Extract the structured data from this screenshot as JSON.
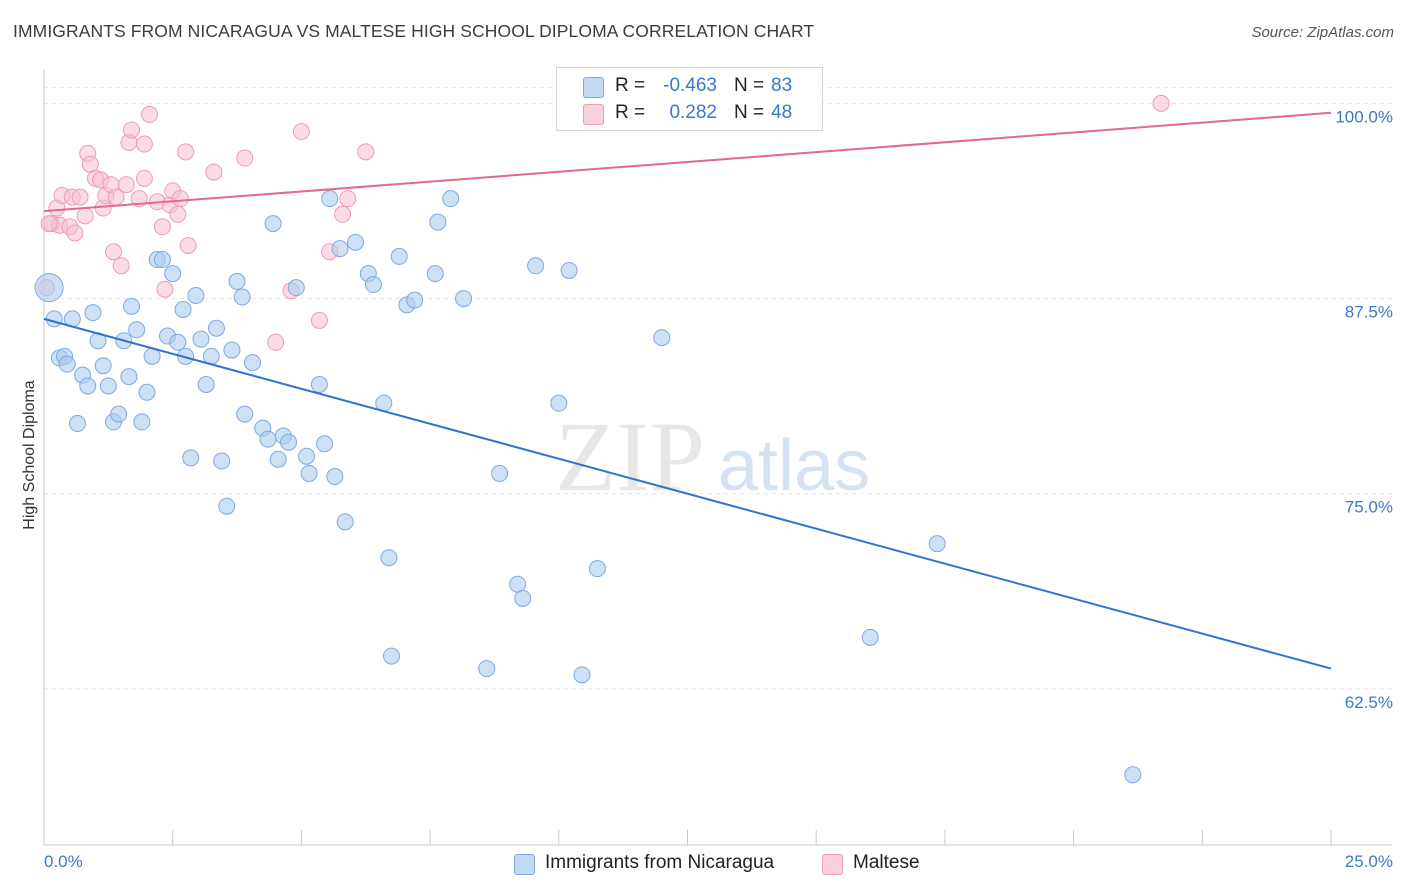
{
  "header": {
    "title": "IMMIGRANTS FROM NICARAGUA VS MALTESE HIGH SCHOOL DIPLOMA CORRELATION CHART",
    "source": "Source: ZipAtlas.com"
  },
  "watermark": {
    "zip": "ZIP",
    "atlas": "atlas"
  },
  "legend_top": {
    "rows": [
      {
        "r_label": "R =",
        "r_value": "-0.463",
        "n_label": "N =",
        "n_value": "83"
      },
      {
        "r_label": "R =",
        "r_value": "0.282",
        "n_label": "N =",
        "n_value": "48"
      }
    ]
  },
  "legend_bottom": {
    "items": [
      {
        "label": "Immigrants from Nicaragua"
      },
      {
        "label": "Maltese"
      }
    ]
  },
  "colors": {
    "blue_fill": "#aecbf0",
    "blue_stroke": "#7fa9df",
    "blue_line": "#2f74d0",
    "pink_fill": "#f7bfd0",
    "pink_stroke": "#ee9bb6",
    "pink_line": "#e2688f",
    "grid": "#e3e3e3",
    "tick_label": "#3a78c9"
  },
  "chart_data": {
    "type": "scatter",
    "title": "IMMIGRANTS FROM NICARAGUA VS MALTESE HIGH SCHOOL DIPLOMA CORRELATION CHART",
    "xlabel": "",
    "ylabel": "High School Diploma",
    "xlim": [
      0,
      25
    ],
    "ylim": [
      52.5,
      101.5
    ],
    "x_tick_labels": {
      "min": "0.0%",
      "max": "25.0%"
    },
    "y_ticks": [
      {
        "value": 100,
        "label": "100.0%"
      },
      {
        "value": 87.5,
        "label": "87.5%"
      },
      {
        "value": 75,
        "label": "75.0%"
      },
      {
        "value": 62.5,
        "label": "62.5%"
      }
    ],
    "grid": "horizontal dashed",
    "legend_placement": "top-center",
    "series": [
      {
        "name": "Immigrants from Nicaragua",
        "color": "#aecbf0",
        "trend": {
          "x": [
            0,
            25
          ],
          "y": [
            86.2,
            63.8
          ]
        },
        "points": [
          [
            0.1,
            88.2
          ],
          [
            0.2,
            86.2
          ],
          [
            0.3,
            83.7
          ],
          [
            0.4,
            83.8
          ],
          [
            0.45,
            83.3
          ],
          [
            0.55,
            86.2
          ],
          [
            0.65,
            79.5
          ],
          [
            0.75,
            82.6
          ],
          [
            0.85,
            81.9
          ],
          [
            0.95,
            86.6
          ],
          [
            1.05,
            84.8
          ],
          [
            1.15,
            83.2
          ],
          [
            1.25,
            81.9
          ],
          [
            1.35,
            79.6
          ],
          [
            1.45,
            80.1
          ],
          [
            1.55,
            84.8
          ],
          [
            1.65,
            82.5
          ],
          [
            1.7,
            87.0
          ],
          [
            1.8,
            85.5
          ],
          [
            1.9,
            79.6
          ],
          [
            2.0,
            81.5
          ],
          [
            2.1,
            83.8
          ],
          [
            2.2,
            90.0
          ],
          [
            2.3,
            90.0
          ],
          [
            2.4,
            85.1
          ],
          [
            2.5,
            89.1
          ],
          [
            2.6,
            84.7
          ],
          [
            2.7,
            86.8
          ],
          [
            2.75,
            83.8
          ],
          [
            2.85,
            77.3
          ],
          [
            2.95,
            87.7
          ],
          [
            3.05,
            84.9
          ],
          [
            3.15,
            82.0
          ],
          [
            3.25,
            83.8
          ],
          [
            3.35,
            85.6
          ],
          [
            3.45,
            77.1
          ],
          [
            3.55,
            74.2
          ],
          [
            3.65,
            84.2
          ],
          [
            3.75,
            88.6
          ],
          [
            3.85,
            87.6
          ],
          [
            3.9,
            80.1
          ],
          [
            4.05,
            83.4
          ],
          [
            4.25,
            79.2
          ],
          [
            4.35,
            78.5
          ],
          [
            4.45,
            92.3
          ],
          [
            4.55,
            77.2
          ],
          [
            4.65,
            78.7
          ],
          [
            4.75,
            78.3
          ],
          [
            4.9,
            88.2
          ],
          [
            5.1,
            77.4
          ],
          [
            5.15,
            76.3
          ],
          [
            5.35,
            82.0
          ],
          [
            5.45,
            78.2
          ],
          [
            5.55,
            93.9
          ],
          [
            5.65,
            76.1
          ],
          [
            5.75,
            90.7
          ],
          [
            5.85,
            73.2
          ],
          [
            6.05,
            91.1
          ],
          [
            6.3,
            89.1
          ],
          [
            6.4,
            88.4
          ],
          [
            6.6,
            80.8
          ],
          [
            6.7,
            70.9
          ],
          [
            6.75,
            64.6
          ],
          [
            6.9,
            90.2
          ],
          [
            7.05,
            87.1
          ],
          [
            7.2,
            87.4
          ],
          [
            7.6,
            89.1
          ],
          [
            7.65,
            92.4
          ],
          [
            7.9,
            93.9
          ],
          [
            8.15,
            87.5
          ],
          [
            8.6,
            63.8
          ],
          [
            8.85,
            76.3
          ],
          [
            9.2,
            69.2
          ],
          [
            9.3,
            68.3
          ],
          [
            9.55,
            89.6
          ],
          [
            10.0,
            80.8
          ],
          [
            10.2,
            89.3
          ],
          [
            10.45,
            63.4
          ],
          [
            10.75,
            70.2
          ],
          [
            12.0,
            85.0
          ],
          [
            16.05,
            65.8
          ],
          [
            17.35,
            71.8
          ],
          [
            21.15,
            57.0
          ]
        ]
      },
      {
        "name": "Maltese",
        "color": "#f7bfd0",
        "trend": {
          "x": [
            0,
            25
          ],
          "y": [
            93.1,
            99.4
          ]
        },
        "points": [
          [
            0.05,
            88.2
          ],
          [
            0.15,
            92.3
          ],
          [
            0.25,
            93.3
          ],
          [
            0.3,
            92.2
          ],
          [
            0.35,
            94.1
          ],
          [
            0.5,
            92.1
          ],
          [
            0.55,
            94.0
          ],
          [
            0.6,
            91.7
          ],
          [
            0.7,
            94.0
          ],
          [
            0.8,
            92.8
          ],
          [
            0.85,
            96.8
          ],
          [
            0.9,
            96.1
          ],
          [
            1.0,
            95.2
          ],
          [
            1.1,
            95.1
          ],
          [
            1.15,
            93.3
          ],
          [
            1.2,
            94.1
          ],
          [
            1.3,
            94.8
          ],
          [
            1.35,
            90.5
          ],
          [
            1.4,
            94.0
          ],
          [
            1.5,
            89.6
          ],
          [
            1.6,
            94.8
          ],
          [
            1.65,
            97.5
          ],
          [
            1.7,
            98.3
          ],
          [
            1.85,
            93.9
          ],
          [
            1.95,
            97.4
          ],
          [
            1.95,
            95.2
          ],
          [
            2.05,
            99.3
          ],
          [
            2.2,
            93.7
          ],
          [
            2.3,
            92.1
          ],
          [
            2.35,
            88.1
          ],
          [
            2.45,
            93.5
          ],
          [
            2.5,
            94.4
          ],
          [
            2.6,
            92.9
          ],
          [
            2.65,
            93.9
          ],
          [
            2.75,
            96.9
          ],
          [
            2.8,
            90.9
          ],
          [
            3.3,
            95.6
          ],
          [
            3.9,
            96.5
          ],
          [
            4.5,
            84.7
          ],
          [
            4.8,
            88.0
          ],
          [
            5.0,
            98.2
          ],
          [
            5.35,
            86.1
          ],
          [
            5.55,
            90.5
          ],
          [
            5.8,
            92.9
          ],
          [
            5.9,
            93.9
          ],
          [
            6.25,
            96.9
          ],
          [
            21.7,
            100.0
          ],
          [
            0.1,
            92.3
          ]
        ]
      }
    ]
  }
}
